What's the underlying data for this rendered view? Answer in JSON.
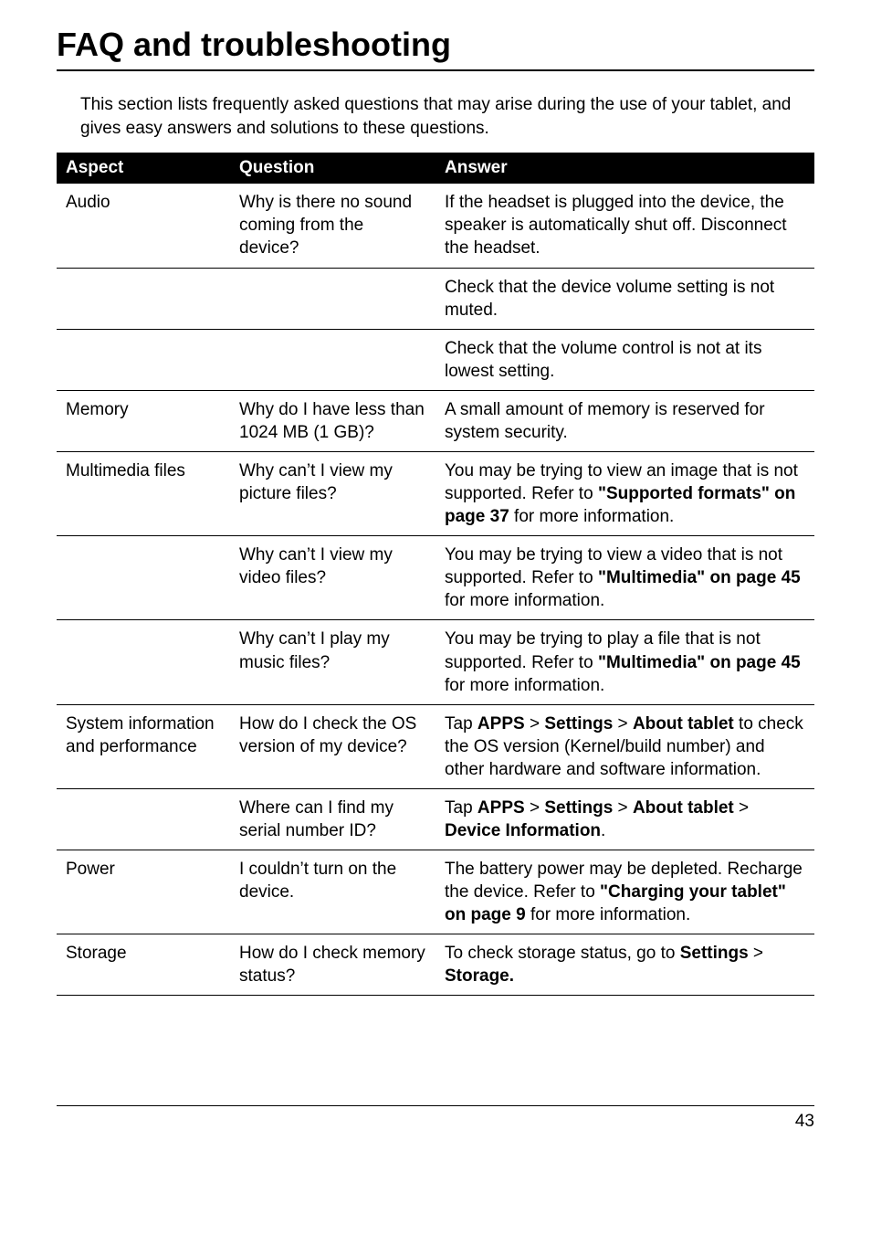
{
  "title": "FAQ and troubleshooting",
  "intro": "This section lists frequently asked questions that may arise during the use of your tablet, and gives easy answers and solutions to these questions.",
  "headers": {
    "c1": "Aspect",
    "c2": "Question",
    "c3": "Answer"
  },
  "rows": {
    "audio": {
      "aspect": "Audio",
      "q": "Why is there no sound coming from the device?",
      "a1": "If the headset is plugged into the device, the speaker is automatically shut off. Disconnect the headset.",
      "a2": "Check that the device volume setting is not muted.",
      "a3": "Check that the volume control is not at its lowest setting."
    },
    "memory": {
      "aspect": "Memory",
      "q": "Why do I have less than 1024 MB (1 GB)?",
      "a": "A small amount of memory is reserved for system security."
    },
    "mm1": {
      "aspect": "Multimedia files",
      "q": "Why can’t I view my picture files?",
      "a_pre": "You may be trying to view an image that is not supported. Refer to ",
      "a_b1": "\"Supported formats\" on page 37",
      "a_post": " for more information."
    },
    "mm2": {
      "q": "Why can’t I view my video files?",
      "a_pre": "You may be trying to view a video that is not supported. Refer to ",
      "a_b1": "\"Multimedia\" on page 45",
      "a_post": " for more information."
    },
    "mm3": {
      "q": "Why can’t I play my music files?",
      "a_pre": "You may be trying to play a file that is not supported. Refer to ",
      "a_b1": "\"Multimedia\" on page 45",
      "a_post": " for more information."
    },
    "sys1": {
      "aspect": "System information and performance",
      "q": "How do I check the OS version of my device?",
      "a_pre": "Tap ",
      "a_b1": "APPS",
      "a_gt1": " > ",
      "a_b2": "Settings",
      "a_gt2": " > ",
      "a_b3": "About tablet",
      "a_post": " to check the OS version (Kernel/build number) and other hardware and software information."
    },
    "sys2": {
      "q": "Where can I find my serial number ID?",
      "a_pre": "Tap ",
      "a_b1": "APPS",
      "a_gt1": " > ",
      "a_b2": "Settings",
      "a_gt2": " > ",
      "a_b3": "About tablet",
      "a_gt3": " > ",
      "a_b4": "Device Information",
      "a_post": "."
    },
    "power": {
      "aspect": "Power",
      "q": "I couldn’t turn on the device.",
      "a_pre": "The battery power may be depleted. Recharge the device. Refer to ",
      "a_b1": "\"Charging your tablet\" on page 9",
      "a_post": " for more information."
    },
    "storage": {
      "aspect": "Storage",
      "q": "How do I check memory status?",
      "a_pre": "To check storage status, go to ",
      "a_b1": "Settings",
      "a_gt1": " > ",
      "a_b2": "Storage.",
      "a_post": ""
    }
  },
  "page_number": "43"
}
